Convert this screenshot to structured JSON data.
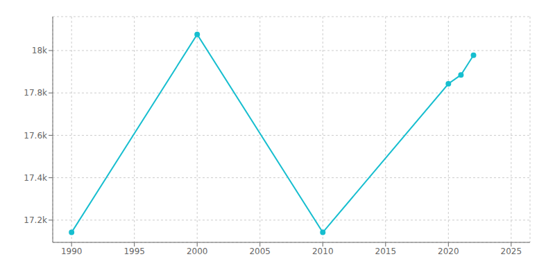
{
  "chart_data": {
    "type": "line",
    "x": [
      1990,
      2000,
      2010,
      2020,
      2021,
      2022
    ],
    "values": [
      17142,
      18076,
      17142,
      17843,
      17885,
      17978
    ],
    "color": "#17becf",
    "marker": "circle",
    "xlim": [
      1988.5,
      2026.5
    ],
    "xticks": [
      1990,
      1995,
      2000,
      2005,
      2010,
      2015,
      2020,
      2025
    ],
    "ylim": [
      17095,
      18160
    ],
    "yticks": [
      {
        "value": 17200,
        "label": "17.2k"
      },
      {
        "value": 17400,
        "label": "17.4k"
      },
      {
        "value": 17600,
        "label": "17.6k"
      },
      {
        "value": 17800,
        "label": "17.8k"
      },
      {
        "value": 18000,
        "label": "18k"
      }
    ],
    "grid": true
  }
}
